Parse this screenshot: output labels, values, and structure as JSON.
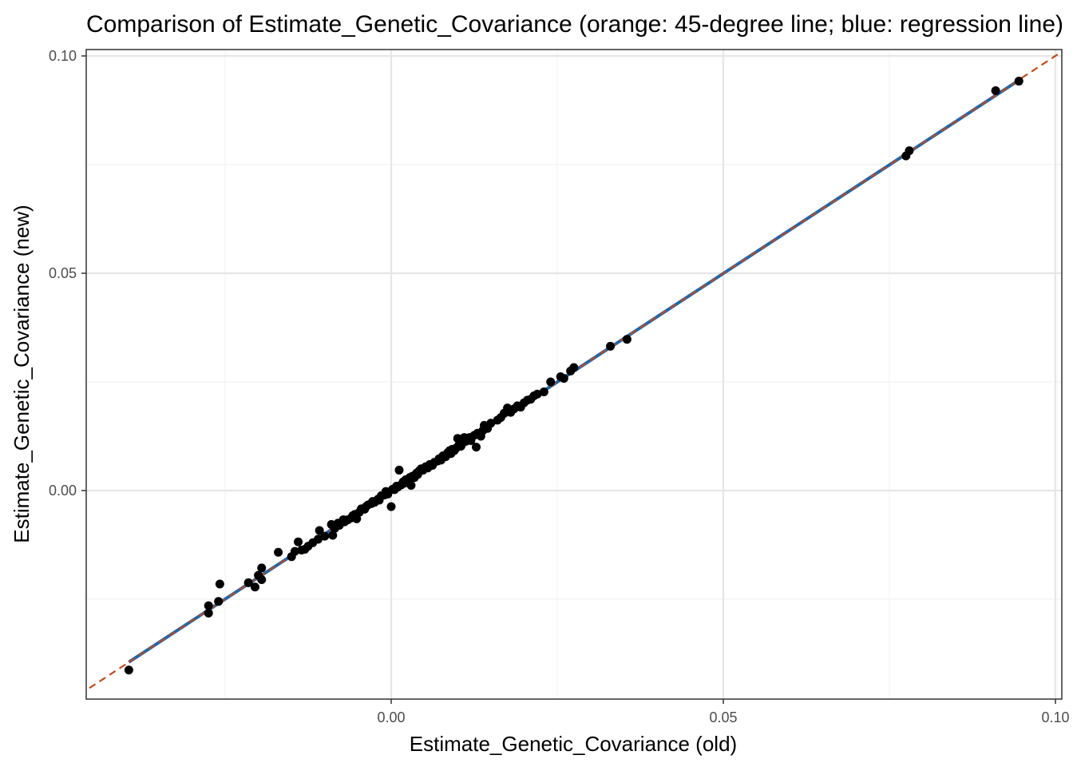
{
  "chart_data": {
    "type": "scatter",
    "title": "Comparison of Estimate_Genetic_Covariance (orange: 45-degree line; blue: regression line)",
    "xlabel": "Estimate_Genetic_Covariance (old)",
    "ylabel": "Estimate_Genetic_Covariance (new)",
    "xlim": [
      -0.046,
      0.1
    ],
    "ylim": [
      -0.048,
      0.1
    ],
    "x_ticks": [
      0.0,
      0.05,
      0.1
    ],
    "x_tick_labels": [
      "0.00",
      "0.05",
      "0.10"
    ],
    "y_ticks": [
      0.0,
      0.05,
      0.1
    ],
    "y_tick_labels": [
      "0.00",
      "0.05",
      "0.10"
    ],
    "grid": true,
    "legend": "none",
    "colors": {
      "points": "#000000",
      "identity_line": "#c04a1a",
      "regression_line": "#2166ac",
      "grid_major": "#e6e6e6",
      "grid_minor": "#f2f2f2",
      "panel_border": "#333333"
    },
    "identity_line": {
      "slope": 1,
      "intercept": 0,
      "style": "dashed"
    },
    "regression_line": {
      "slope": 0.999,
      "intercept": 0.0,
      "x_range": [
        -0.0395,
        0.094
      ]
    },
    "points": [
      [
        -0.0395,
        -0.0413
      ],
      [
        -0.0275,
        -0.0282
      ],
      [
        -0.0275,
        -0.0265
      ],
      [
        -0.026,
        -0.0255
      ],
      [
        -0.0258,
        -0.0215
      ],
      [
        -0.0215,
        -0.0212
      ],
      [
        -0.0205,
        -0.0222
      ],
      [
        -0.02,
        -0.0195
      ],
      [
        -0.0195,
        -0.0205
      ],
      [
        -0.0195,
        -0.0178
      ],
      [
        -0.017,
        -0.0142
      ],
      [
        -0.015,
        -0.0152
      ],
      [
        -0.0145,
        -0.014
      ],
      [
        -0.014,
        -0.0118
      ],
      [
        -0.0135,
        -0.0137
      ],
      [
        -0.013,
        -0.0135
      ],
      [
        -0.0125,
        -0.0128
      ],
      [
        -0.0118,
        -0.012
      ],
      [
        -0.011,
        -0.0112
      ],
      [
        -0.0108,
        -0.0092
      ],
      [
        -0.01,
        -0.0105
      ],
      [
        -0.009,
        -0.0078
      ],
      [
        -0.0088,
        -0.0103
      ],
      [
        -0.0085,
        -0.0087
      ],
      [
        -0.008,
        -0.0075
      ],
      [
        -0.0078,
        -0.008
      ],
      [
        -0.0072,
        -0.0067
      ],
      [
        -0.007,
        -0.0072
      ],
      [
        -0.0065,
        -0.0067
      ],
      [
        -0.006,
        -0.0063
      ],
      [
        -0.0058,
        -0.0058
      ],
      [
        -0.0055,
        -0.0055
      ],
      [
        -0.0052,
        -0.0065
      ],
      [
        -0.0048,
        -0.005
      ],
      [
        -0.0045,
        -0.0042
      ],
      [
        -0.004,
        -0.0043
      ],
      [
        -0.0038,
        -0.0037
      ],
      [
        -0.0035,
        -0.0033
      ],
      [
        -0.003,
        -0.003
      ],
      [
        -0.0028,
        -0.0025
      ],
      [
        -0.0025,
        -0.0027
      ],
      [
        -0.002,
        -0.002
      ],
      [
        -0.0018,
        -0.0022
      ],
      [
        -0.0015,
        -0.0012
      ],
      [
        -0.001,
        -0.001
      ],
      [
        -0.0008,
        -0.0002
      ],
      [
        -0.0005,
        -0.0008
      ],
      [
        0.0,
        -0.0037
      ],
      [
        0.0002,
        0.0003
      ],
      [
        0.0005,
        0.0002
      ],
      [
        0.0008,
        0.001
      ],
      [
        0.001,
        0.0008
      ],
      [
        0.0012,
        0.0047
      ],
      [
        0.0015,
        0.0013
      ],
      [
        0.0018,
        0.002
      ],
      [
        0.002,
        0.0017
      ],
      [
        0.0022,
        0.0025
      ],
      [
        0.0025,
        0.0022
      ],
      [
        0.0028,
        0.003
      ],
      [
        0.003,
        0.0012
      ],
      [
        0.0032,
        0.0033
      ],
      [
        0.0035,
        0.003
      ],
      [
        0.0038,
        0.004
      ],
      [
        0.004,
        0.0037
      ],
      [
        0.0042,
        0.0045
      ],
      [
        0.0045,
        0.005
      ],
      [
        0.0048,
        0.0047
      ],
      [
        0.0052,
        0.0055
      ],
      [
        0.0055,
        0.0052
      ],
      [
        0.0058,
        0.006
      ],
      [
        0.0062,
        0.0058
      ],
      [
        0.0065,
        0.0065
      ],
      [
        0.007,
        0.0068
      ],
      [
        0.0072,
        0.0073
      ],
      [
        0.0075,
        0.007
      ],
      [
        0.0078,
        0.008
      ],
      [
        0.0082,
        0.0078
      ],
      [
        0.0085,
        0.0087
      ],
      [
        0.0088,
        0.0092
      ],
      [
        0.009,
        0.0085
      ],
      [
        0.0092,
        0.0095
      ],
      [
        0.0095,
        0.0092
      ],
      [
        0.0098,
        0.0098
      ],
      [
        0.01,
        0.012
      ],
      [
        0.0102,
        0.0105
      ],
      [
        0.0105,
        0.0102
      ],
      [
        0.0108,
        0.011
      ],
      [
        0.011,
        0.0122
      ],
      [
        0.0112,
        0.0113
      ],
      [
        0.0115,
        0.0118
      ],
      [
        0.0118,
        0.0122
      ],
      [
        0.012,
        0.0115
      ],
      [
        0.0125,
        0.0127
      ],
      [
        0.0128,
        0.01
      ],
      [
        0.013,
        0.0132
      ],
      [
        0.0135,
        0.0125
      ],
      [
        0.0138,
        0.0138
      ],
      [
        0.014,
        0.015
      ],
      [
        0.0145,
        0.0143
      ],
      [
        0.015,
        0.0155
      ],
      [
        0.016,
        0.0162
      ],
      [
        0.0165,
        0.0168
      ],
      [
        0.017,
        0.0178
      ],
      [
        0.0175,
        0.019
      ],
      [
        0.018,
        0.018
      ],
      [
        0.0185,
        0.0188
      ],
      [
        0.019,
        0.0195
      ],
      [
        0.0195,
        0.0192
      ],
      [
        0.02,
        0.0202
      ],
      [
        0.0205,
        0.0208
      ],
      [
        0.021,
        0.021
      ],
      [
        0.0215,
        0.0218
      ],
      [
        0.022,
        0.0222
      ],
      [
        0.023,
        0.0227
      ],
      [
        0.024,
        0.025
      ],
      [
        0.0255,
        0.0262
      ],
      [
        0.026,
        0.0258
      ],
      [
        0.027,
        0.0275
      ],
      [
        0.0275,
        0.0283
      ],
      [
        0.033,
        0.0332
      ],
      [
        0.0355,
        0.0348
      ],
      [
        0.0775,
        0.077
      ],
      [
        0.078,
        0.0782
      ],
      [
        0.091,
        0.092
      ],
      [
        0.0945,
        0.0942
      ]
    ]
  }
}
